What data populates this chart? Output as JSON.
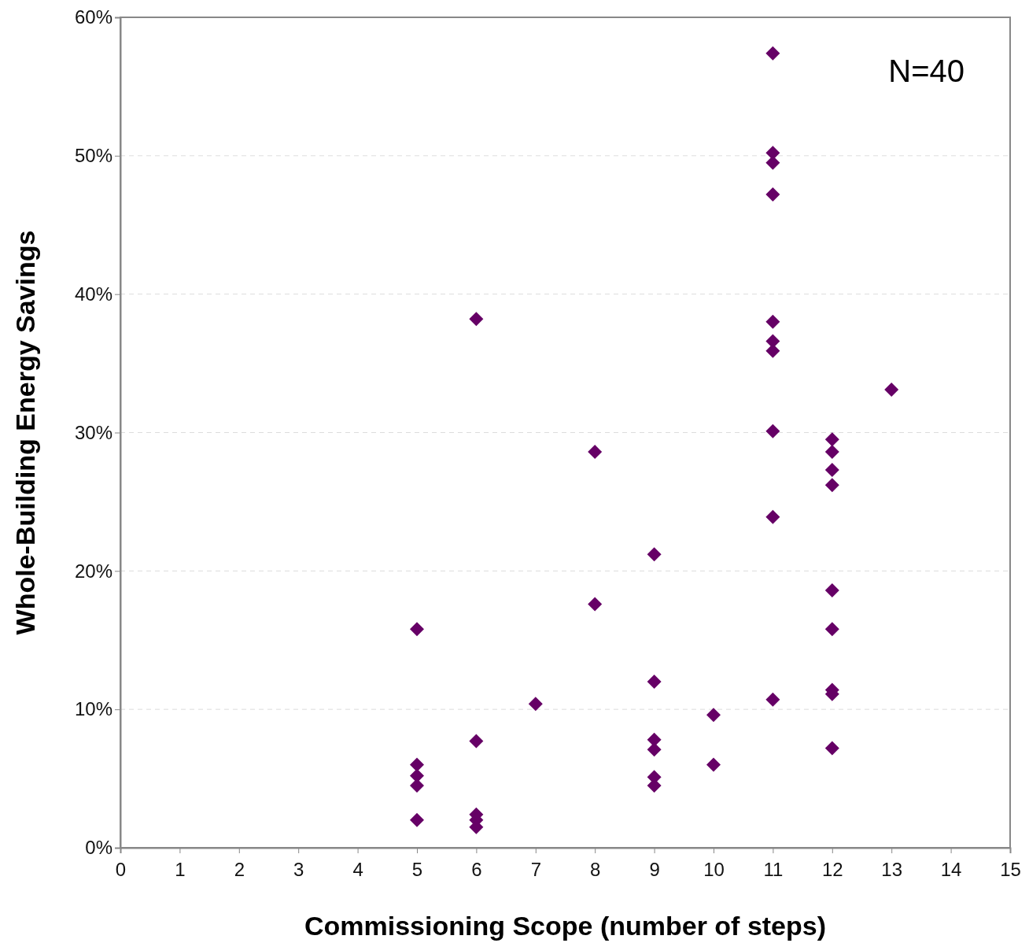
{
  "chart_data": {
    "type": "scatter",
    "xlabel": "Commissioning Scope (number of steps)",
    "ylabel": "Whole-Building Energy Savings",
    "annotations": [
      "N=40"
    ],
    "series": [
      {
        "color": "#660066",
        "x": [
          5,
          5,
          5,
          5,
          5,
          6,
          6,
          6,
          6,
          6,
          7,
          8,
          8,
          9,
          9,
          9,
          9,
          9,
          9,
          10,
          10,
          11,
          11,
          11,
          11,
          11,
          11,
          11,
          11,
          11,
          11,
          12,
          12,
          12,
          12,
          12,
          12,
          12,
          12,
          12,
          13
        ],
        "values": [
          0.158,
          0.06,
          0.052,
          0.045,
          0.02,
          0.382,
          0.077,
          0.024,
          0.02,
          0.015,
          0.104,
          0.286,
          0.176,
          0.212,
          0.12,
          0.078,
          0.071,
          0.051,
          0.045,
          0.096,
          0.06,
          0.574,
          0.502,
          0.495,
          0.472,
          0.38,
          0.366,
          0.359,
          0.301,
          0.239,
          0.107,
          0.295,
          0.286,
          0.273,
          0.262,
          0.186,
          0.158,
          0.114,
          0.111,
          0.072,
          0.331
        ]
      }
    ],
    "marker": "diamond",
    "grid": "y",
    "xlim": [
      0,
      15
    ],
    "xticks": [
      0,
      1,
      2,
      3,
      4,
      5,
      6,
      7,
      8,
      9,
      10,
      11,
      12,
      13,
      14,
      15
    ],
    "ylim": [
      0,
      0.6
    ],
    "yticks": [
      {
        "value": 0,
        "label": "0%"
      },
      {
        "value": 0.1,
        "label": "10%"
      },
      {
        "value": 0.2,
        "label": "20%"
      },
      {
        "value": 0.3,
        "label": "30%"
      },
      {
        "value": 0.4,
        "label": "40%"
      },
      {
        "value": 0.5,
        "label": "50%"
      },
      {
        "value": 0.6,
        "label": "60%"
      }
    ]
  }
}
